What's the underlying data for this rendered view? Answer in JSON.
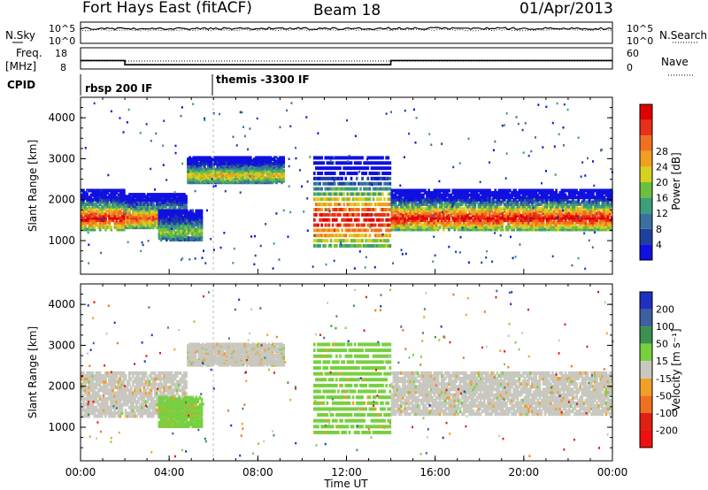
{
  "header": {
    "radar": "Fort Hays East (fitACF)",
    "beam": "Beam 18",
    "date": "01/Apr/2013"
  },
  "sky_panel": {
    "left_label": "N.Sky",
    "right_label": "N.Search",
    "left_ticks": [
      "10^5",
      "10^0"
    ],
    "right_ticks": [
      "10^5",
      "10^0"
    ]
  },
  "freq_panel": {
    "left_label_1": "Freq.",
    "left_label_2": "[MHz]",
    "right_label": "Nave",
    "left_ticks": [
      "18",
      "8"
    ],
    "right_ticks": [
      "60",
      "0"
    ]
  },
  "cpid": {
    "label": "CPID",
    "segments": [
      {
        "text": "rbsp 200 IF",
        "start_hour": 0
      },
      {
        "text": "themis -3300 IF",
        "start_hour": 6
      }
    ]
  },
  "x_axis": {
    "label": "Time UT",
    "ticks": [
      "00:00",
      "04:00",
      "08:00",
      "12:00",
      "16:00",
      "20:00",
      "00:00"
    ],
    "range_hours": [
      0,
      24
    ]
  },
  "power_panel": {
    "y_label": "Slant Range [km]",
    "y_ticks": [
      "1000",
      "2000",
      "3000",
      "4000"
    ],
    "scale_label": "Power [dB]",
    "scale_ticks": [
      "4",
      "8",
      "12",
      "16",
      "20",
      "24",
      "28"
    ],
    "colors": [
      "#1010e0",
      "#2040a0",
      "#3a70a0",
      "#3c9e7a",
      "#6cc040",
      "#d8d020",
      "#f0a020",
      "#f07020",
      "#e83018",
      "#e00000"
    ]
  },
  "velocity_panel": {
    "y_label": "Slant Range [km]",
    "y_ticks": [
      "1000",
      "2000",
      "3000",
      "4000"
    ],
    "scale_label": "Velocity [m s⁻¹]",
    "scale_ticks": [
      "200",
      "100",
      "50",
      "15",
      "-15",
      "-50",
      "-100",
      "-200"
    ],
    "colors": [
      "#2030c0",
      "#3c60a0",
      "#3c9050",
      "#78d040",
      "#c8c8c0",
      "#f0a028",
      "#f07020",
      "#e02010",
      "#f01010"
    ]
  },
  "chart_data": {
    "type": "heatmap",
    "x_range_hours": [
      0,
      24
    ],
    "y_range_km": [
      180,
      4500
    ],
    "power_bands": [
      {
        "t0": 0.0,
        "t1": 2.0,
        "r0": 1250,
        "r1": 2200,
        "peak_db": 28
      },
      {
        "t0": 2.0,
        "t1": 4.8,
        "r0": 1300,
        "r1": 2100,
        "peak_db": 24
      },
      {
        "t0": 4.8,
        "t1": 9.2,
        "r0": 2400,
        "r1": 3000,
        "peak_db": 18
      },
      {
        "t0": 3.5,
        "t1": 5.5,
        "r0": 1000,
        "r1": 1700,
        "peak_db": 14
      },
      {
        "t0": 10.5,
        "t1": 14.0,
        "r0": 850,
        "r1": 3000,
        "peak_db": 28
      },
      {
        "t0": 14.0,
        "t1": 24.0,
        "r0": 1250,
        "r1": 2200,
        "peak_db": 28
      }
    ],
    "velocity_bands": [
      {
        "t0": 0.0,
        "t1": 4.8,
        "r0": 1250,
        "r1": 2300,
        "v_ms": 0
      },
      {
        "t0": 4.8,
        "t1": 9.2,
        "r0": 2500,
        "r1": 3000,
        "v_ms": 0
      },
      {
        "t0": 3.5,
        "t1": 5.5,
        "r0": 1000,
        "r1": 1700,
        "v_ms": 40
      },
      {
        "t0": 10.5,
        "t1": 14.0,
        "r0": 850,
        "r1": 3000,
        "v_ms": 40
      },
      {
        "t0": 14.0,
        "t1": 24.0,
        "r0": 1300,
        "r1": 2300,
        "v_ms": 0
      }
    ],
    "freq_mhz": [
      {
        "t0": 0,
        "t1": 2,
        "value": 12
      },
      {
        "t0": 2,
        "t1": 14,
        "value": 10
      },
      {
        "t0": 14,
        "t1": 24,
        "value": 12
      }
    ]
  }
}
